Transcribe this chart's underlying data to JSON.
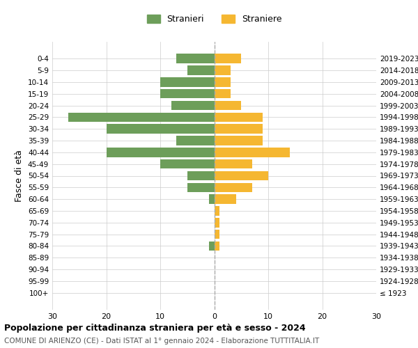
{
  "age_groups": [
    "100+",
    "95-99",
    "90-94",
    "85-89",
    "80-84",
    "75-79",
    "70-74",
    "65-69",
    "60-64",
    "55-59",
    "50-54",
    "45-49",
    "40-44",
    "35-39",
    "30-34",
    "25-29",
    "20-24",
    "15-19",
    "10-14",
    "5-9",
    "0-4"
  ],
  "birth_years": [
    "≤ 1923",
    "1924-1928",
    "1929-1933",
    "1934-1938",
    "1939-1943",
    "1944-1948",
    "1949-1953",
    "1954-1958",
    "1959-1963",
    "1964-1968",
    "1969-1973",
    "1974-1978",
    "1979-1983",
    "1984-1988",
    "1989-1993",
    "1994-1998",
    "1999-2003",
    "2004-2008",
    "2009-2013",
    "2014-2018",
    "2019-2023"
  ],
  "males": [
    0,
    0,
    0,
    0,
    1,
    0,
    0,
    0,
    1,
    5,
    5,
    10,
    20,
    7,
    20,
    27,
    8,
    10,
    10,
    5,
    7
  ],
  "females": [
    0,
    0,
    0,
    0,
    1,
    1,
    1,
    1,
    4,
    7,
    10,
    7,
    14,
    9,
    9,
    9,
    5,
    3,
    3,
    3,
    5
  ],
  "male_color": "#6d9e5a",
  "female_color": "#f5b731",
  "center_line_color": "#aaaaaa",
  "grid_color": "#cccccc",
  "background_color": "#ffffff",
  "title": "Popolazione per cittadinanza straniera per età e sesso - 2024",
  "subtitle": "COMUNE DI ARIENZO (CE) - Dati ISTAT al 1° gennaio 2024 - Elaborazione TUTTITALIA.IT",
  "ylabel_left": "Fasce di età",
  "legend_male": "Stranieri",
  "legend_female": "Straniere",
  "xlim": 30,
  "bar_height": 0.8
}
